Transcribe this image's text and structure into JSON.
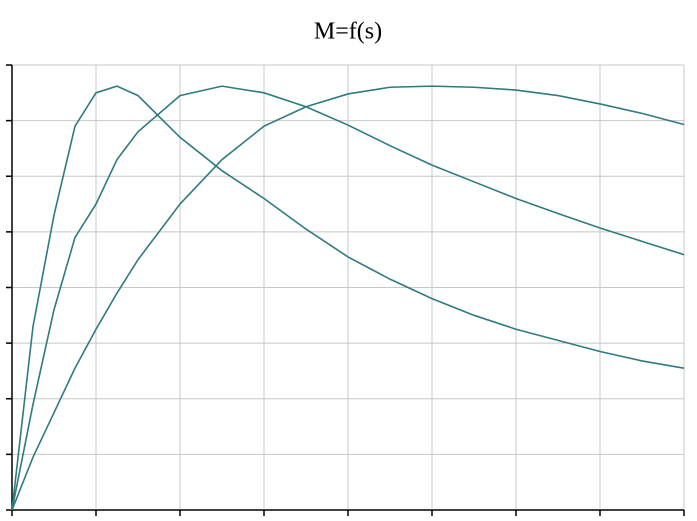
{
  "chart_data": {
    "type": "line",
    "title": "M=f(s)",
    "x": [
      0,
      0.25,
      0.5,
      0.75,
      1,
      1.25,
      1.5,
      2,
      2.5,
      3,
      3.5,
      4,
      4.5,
      5,
      5.5,
      6,
      6.5,
      7,
      7.5,
      8
    ],
    "series": [
      {
        "color": "#2f7b7e",
        "values": [
          0,
          3.3,
          5.3,
          6.9,
          7.5,
          7.62,
          7.45,
          6.7,
          6.1,
          5.6,
          5.05,
          4.55,
          4.15,
          3.8,
          3.5,
          3.25,
          3.05,
          2.85,
          2.68,
          2.55
        ]
      },
      {
        "color": "#2f7b7e",
        "values": [
          0,
          1.9,
          3.6,
          4.9,
          5.5,
          6.3,
          6.8,
          7.45,
          7.62,
          7.5,
          7.25,
          6.92,
          6.55,
          6.2,
          5.9,
          5.6,
          5.33,
          5.07,
          4.83,
          4.59
        ]
      },
      {
        "color": "#2f7b7e",
        "values": [
          0,
          0.95,
          1.75,
          2.55,
          3.25,
          3.9,
          4.5,
          5.5,
          6.3,
          6.9,
          7.25,
          7.48,
          7.6,
          7.62,
          7.6,
          7.55,
          7.45,
          7.3,
          7.13,
          6.93
        ]
      }
    ],
    "xlim": [
      0,
      8
    ],
    "ylim": [
      0,
      8
    ],
    "xticks": [
      0,
      1,
      2,
      3,
      4,
      5,
      6,
      7,
      8
    ],
    "yticks": [
      0,
      1,
      2,
      3,
      4,
      5,
      6,
      7,
      8
    ],
    "grid": true
  }
}
